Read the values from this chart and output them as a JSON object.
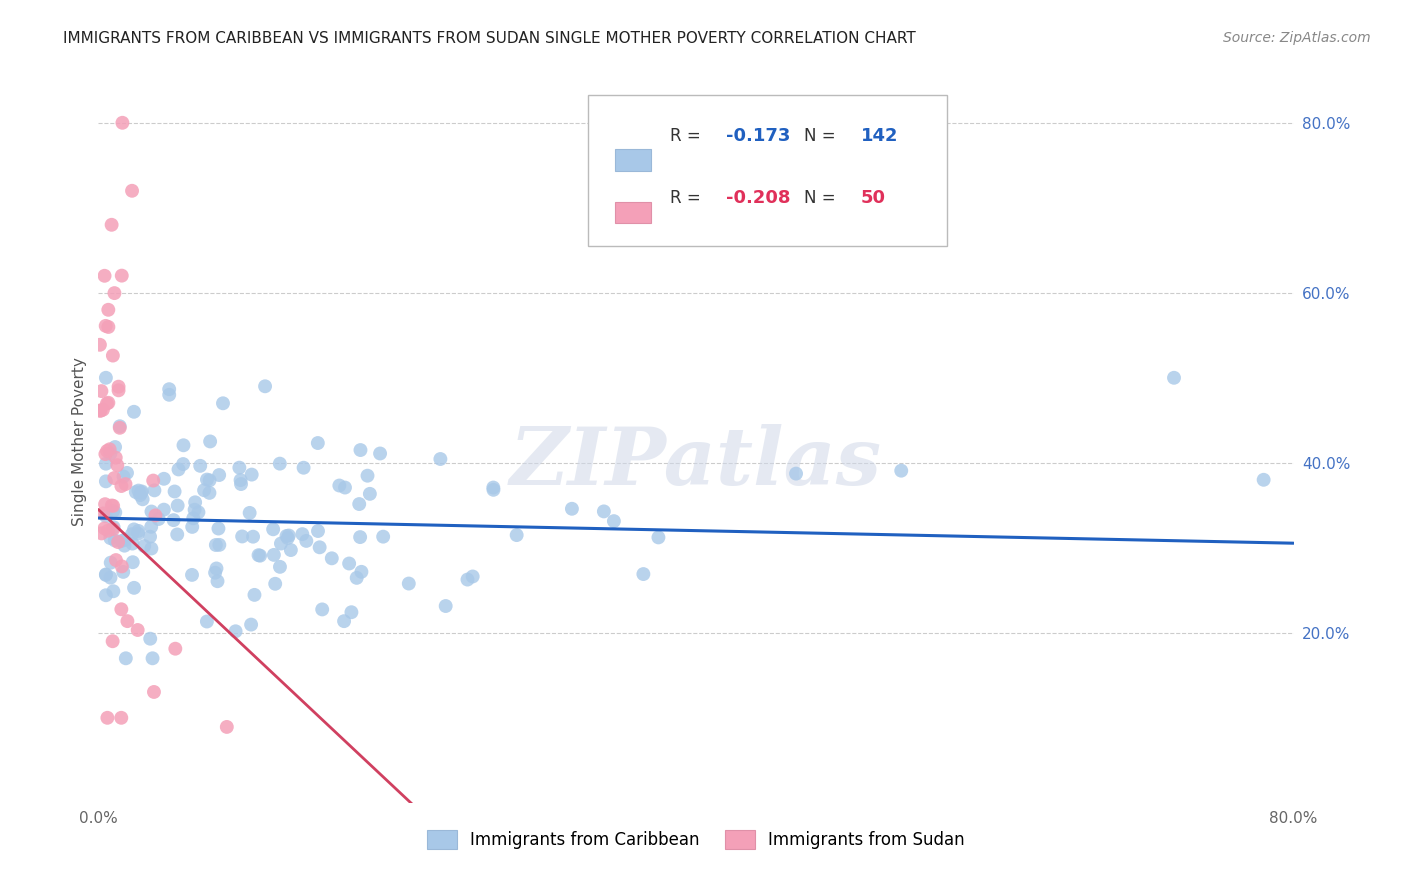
{
  "title": "IMMIGRANTS FROM CARIBBEAN VS IMMIGRANTS FROM SUDAN SINGLE MOTHER POVERTY CORRELATION CHART",
  "source": "Source: ZipAtlas.com",
  "ylabel": "Single Mother Poverty",
  "xlim": [
    0.0,
    0.8
  ],
  "ylim": [
    0.0,
    0.85
  ],
  "x_tick_positions": [
    0.0,
    0.1,
    0.2,
    0.3,
    0.4,
    0.5,
    0.6,
    0.7,
    0.8
  ],
  "x_tick_labels": [
    "0.0%",
    "",
    "",
    "",
    "",
    "",
    "",
    "",
    "80.0%"
  ],
  "y_ticks_right": [
    0.2,
    0.4,
    0.6,
    0.8
  ],
  "y_tick_labels_right": [
    "20.0%",
    "40.0%",
    "60.0%",
    "80.0%"
  ],
  "grid_color": "#cccccc",
  "background_color": "#ffffff",
  "watermark": "ZIPatlas",
  "legend_R1": "-0.173",
  "legend_N1": "142",
  "legend_R2": "-0.208",
  "legend_N2": "50",
  "series1_color": "#a8c8e8",
  "series2_color": "#f4a0b8",
  "trendline1_color": "#2060c0",
  "trendline2_color": "#d04060",
  "series1_label": "Immigrants from Caribbean",
  "series2_label": "Immigrants from Sudan",
  "title_fontsize": 11,
  "source_fontsize": 10,
  "tick_fontsize": 11,
  "ylabel_fontsize": 11
}
